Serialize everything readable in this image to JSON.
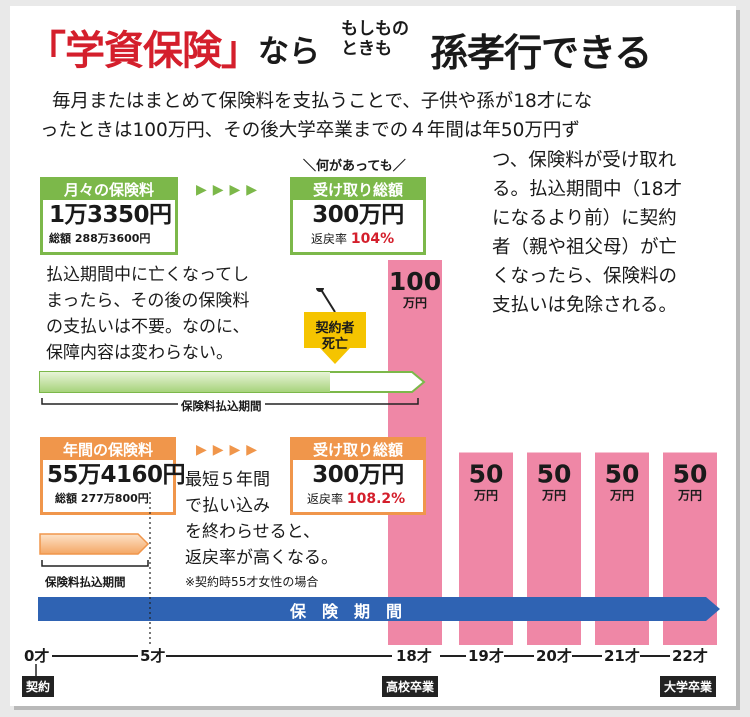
{
  "title": {
    "main": "「学資保険」",
    "nara": "なら",
    "small_line1": "もしもの",
    "small_line2": "ときも",
    "end": "孫孝行できる"
  },
  "description": {
    "line1": "毎月またはまとめて保険料を支払うことで、子供や孫が18才にな",
    "line2": "ったときは100万円、その後大学卒業までの４年間は年50万円ず",
    "line3": "つ、保険料が受け取れ",
    "line4": "る。払込期間中（18才",
    "line5": "になるより前）に契約",
    "line6": "者（親や祖父母）が亡",
    "line7": "くなったら、保険料の",
    "line8": "支払いは免除される。"
  },
  "monthly": {
    "header": "月々の保険料",
    "amount": "1万3350円",
    "total": "総額 288万3600円"
  },
  "nanigaattemo": "＼何があっても／",
  "receive_monthly": {
    "header": "受け取り総額",
    "amount": "300万円",
    "rate_label": "返戻率",
    "rate": "104%"
  },
  "death_note": {
    "line1": "払込期間中に亡くなってし",
    "line2": "まったら、その後の保険料",
    "line3": "の支払いは不要。なのに、",
    "line4": "保障内容は変わらない。"
  },
  "death_badge": {
    "line1": "契約者",
    "line2": "死亡"
  },
  "period_label_top": "保険料払込期間",
  "annual": {
    "header": "年間の保険料",
    "amount": "55万4160円",
    "total": "総額 277万800円"
  },
  "receive_annual": {
    "header": "受け取り総額",
    "amount": "300万円",
    "rate_label": "返戻率",
    "rate": "108.2%"
  },
  "annual_note": {
    "line1": "最短５年間",
    "line2": "で払い込み",
    "line3": "を終わらせると、",
    "line4": "返戻率が高くなる。",
    "line5": "※契約時55才女性の場合"
  },
  "period_label_bottom": "保険料払込期間",
  "coverage_label": "保　険　期　間",
  "chart_data": {
    "type": "bar",
    "categories": [
      "18才",
      "19才",
      "20才",
      "21才",
      "22才"
    ],
    "values": [
      100,
      50,
      50,
      50,
      50
    ],
    "value_labels": [
      "100",
      "50",
      "50",
      "50",
      "50"
    ],
    "unit": "万円"
  },
  "timeline": {
    "ticks": [
      "0才",
      "5才",
      "18才",
      "19才",
      "20才",
      "21才",
      "22才"
    ],
    "tag_contract": "契約",
    "tag_highschool": "高校卒業",
    "tag_university": "大学卒業"
  },
  "colors": {
    "red": "#d41f2c",
    "green": "#7cb84a",
    "orange": "#f0964b",
    "pink": "#ef87a6",
    "blue": "#2f63b3",
    "yellow": "#f5c400"
  }
}
